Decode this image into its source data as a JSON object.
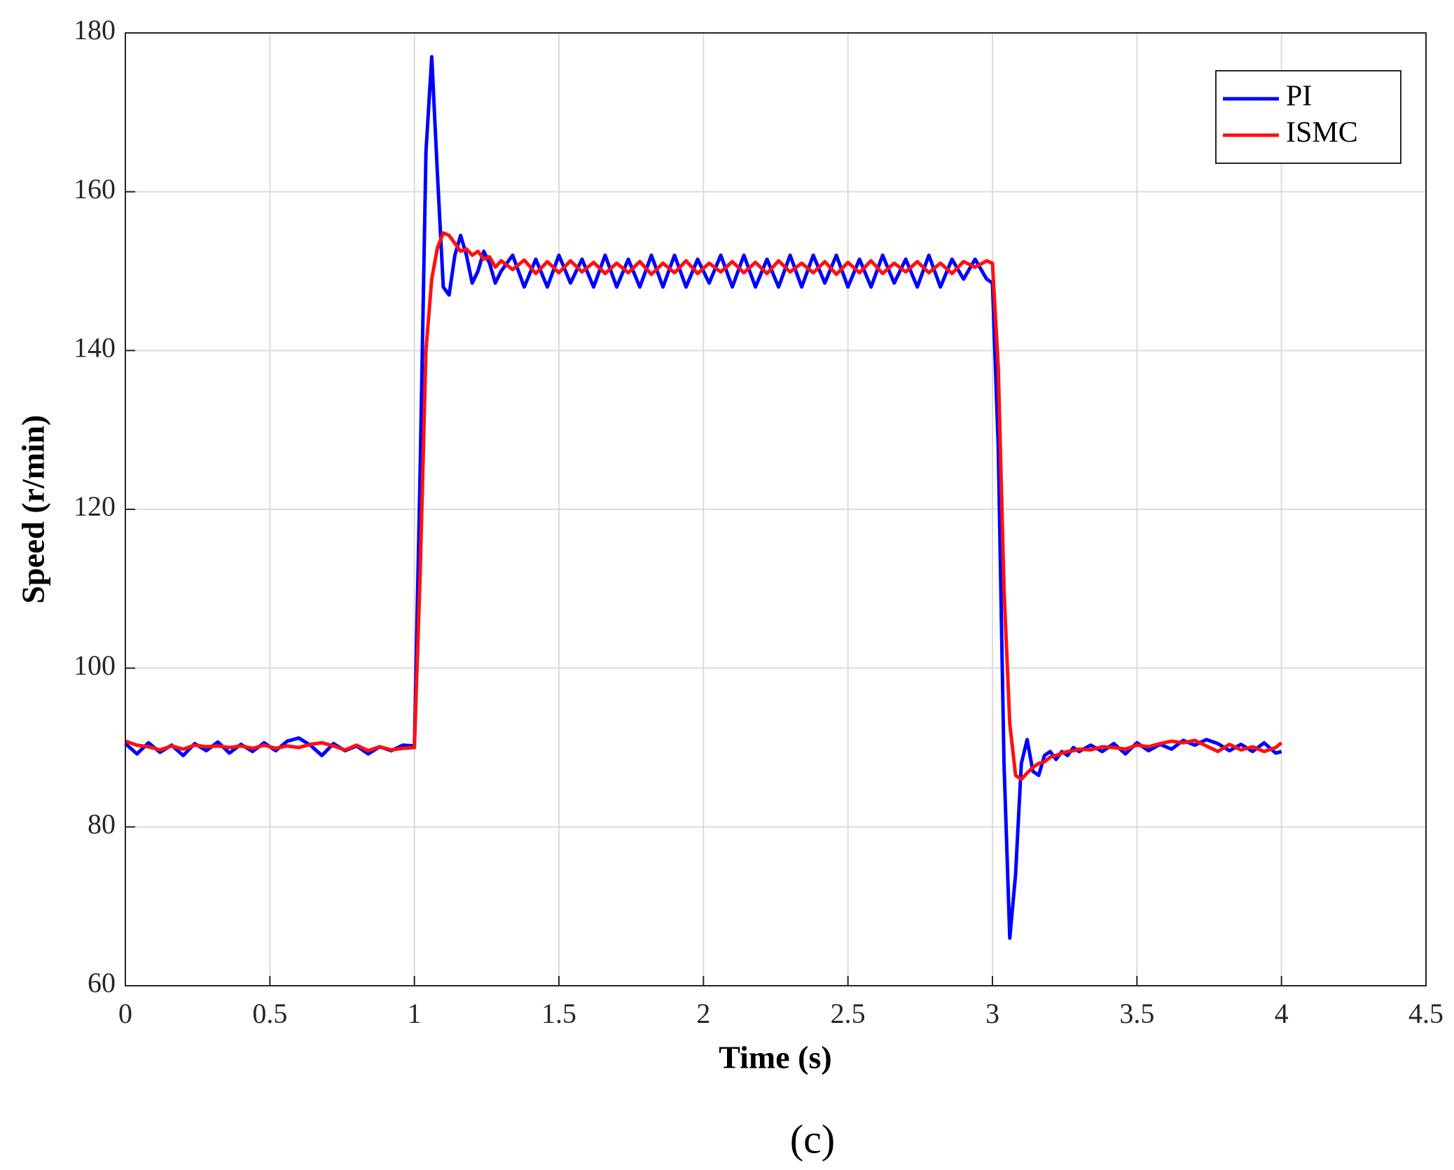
{
  "chart_data": {
    "type": "line",
    "xlabel": "Time (s)",
    "ylabel": "Speed (r/min)",
    "caption": "(c)",
    "xlim": [
      0,
      4.5
    ],
    "xticks": [
      0,
      0.5,
      1,
      1.5,
      2,
      2.5,
      3,
      3.5,
      4,
      4.5
    ],
    "ylim": [
      60,
      180
    ],
    "yticks": [
      60,
      80,
      100,
      120,
      140,
      160,
      180
    ],
    "grid": true,
    "legend": "upper right",
    "x": [
      0,
      0.04,
      0.08,
      0.12,
      0.16,
      0.2,
      0.24,
      0.28,
      0.32,
      0.36,
      0.4,
      0.44,
      0.48,
      0.52,
      0.56,
      0.6,
      0.64,
      0.68,
      0.72,
      0.76,
      0.8,
      0.84,
      0.88,
      0.92,
      0.96,
      1,
      1.02,
      1.04,
      1.06,
      1.08,
      1.1,
      1.12,
      1.14,
      1.16,
      1.18,
      1.2,
      1.22,
      1.24,
      1.26,
      1.28,
      1.3,
      1.34,
      1.38,
      1.42,
      1.46,
      1.5,
      1.54,
      1.58,
      1.62,
      1.66,
      1.7,
      1.74,
      1.78,
      1.82,
      1.86,
      1.9,
      1.94,
      1.98,
      2.02,
      2.06,
      2.1,
      2.14,
      2.18,
      2.22,
      2.26,
      2.3,
      2.34,
      2.38,
      2.42,
      2.46,
      2.5,
      2.54,
      2.58,
      2.62,
      2.66,
      2.7,
      2.74,
      2.78,
      2.82,
      2.86,
      2.9,
      2.94,
      2.98,
      3,
      3.02,
      3.04,
      3.06,
      3.08,
      3.1,
      3.12,
      3.14,
      3.16,
      3.18,
      3.2,
      3.22,
      3.24,
      3.26,
      3.28,
      3.3,
      3.34,
      3.38,
      3.42,
      3.46,
      3.5,
      3.54,
      3.58,
      3.62,
      3.66,
      3.7,
      3.74,
      3.78,
      3.82,
      3.86,
      3.9,
      3.94,
      3.98,
      4
    ],
    "series": [
      {
        "name": "PI",
        "color": "#0000ff",
        "values": [
          90.5,
          89.2,
          90.6,
          89.4,
          90.3,
          89.0,
          90.5,
          89.6,
          90.7,
          89.3,
          90.4,
          89.5,
          90.6,
          89.6,
          90.8,
          91.2,
          90.3,
          89.0,
          90.5,
          89.6,
          90.2,
          89.2,
          90.1,
          89.6,
          90.3,
          90.2,
          125,
          165,
          177,
          162,
          148,
          147,
          152,
          154.5,
          152,
          148.5,
          150,
          152.5,
          151,
          148.5,
          150,
          152,
          148,
          151.5,
          148,
          152,
          148.5,
          151.5,
          148,
          152,
          148,
          151.5,
          148,
          152,
          148,
          152,
          148,
          151.5,
          148.5,
          152,
          148,
          152,
          148,
          151.5,
          148,
          152,
          148,
          152,
          148.5,
          152,
          148,
          151.5,
          148,
          152,
          148.5,
          151.5,
          148,
          152,
          148,
          151.5,
          149,
          151.5,
          149,
          148.5,
          128,
          88,
          66,
          74,
          88,
          91,
          87,
          86.5,
          89,
          89.5,
          88.5,
          89.5,
          89,
          90,
          89.5,
          90.3,
          89.5,
          90.5,
          89.2,
          90.6,
          89.6,
          90.4,
          89.8,
          90.9,
          90.3,
          91,
          90.5,
          89.6,
          90.4,
          89.5,
          90.6,
          89.3,
          89.5
        ]
      },
      {
        "name": "ISMC",
        "color": "#ff1010",
        "values": [
          90.8,
          90.3,
          90.1,
          89.7,
          90.2,
          89.8,
          90.3,
          90.1,
          90.2,
          90.0,
          90.2,
          89.9,
          90.3,
          89.9,
          90.2,
          90.0,
          90.4,
          90.6,
          90.2,
          89.7,
          90.3,
          89.6,
          90.1,
          89.7,
          89.9,
          90.0,
          112,
          140,
          149,
          153,
          154.8,
          154.5,
          153.5,
          152.5,
          152.8,
          152,
          152.5,
          151.5,
          151.8,
          150.5,
          151.3,
          150.2,
          151.4,
          149.7,
          151.2,
          149.8,
          151.3,
          149.9,
          151.1,
          149.7,
          151.0,
          149.8,
          151.2,
          149.6,
          151.0,
          149.8,
          151.3,
          149.7,
          151.0,
          149.9,
          151.2,
          149.8,
          151.1,
          149.7,
          151.3,
          149.9,
          151.0,
          149.8,
          151.2,
          149.6,
          151.1,
          149.8,
          151.3,
          149.7,
          151.0,
          149.9,
          151.2,
          149.8,
          151.0,
          149.7,
          151.2,
          150.5,
          151.3,
          151,
          138,
          110,
          93,
          86.5,
          86,
          86.8,
          87.5,
          88,
          88.2,
          88.8,
          89,
          89.3,
          89.5,
          89.6,
          89.8,
          89.7,
          90.1,
          90.0,
          89.8,
          90.3,
          90.1,
          90.5,
          90.8,
          90.6,
          90.9,
          90.2,
          89.5,
          90.4,
          89.7,
          90.1,
          89.5,
          90.0,
          90.6
        ]
      }
    ]
  }
}
